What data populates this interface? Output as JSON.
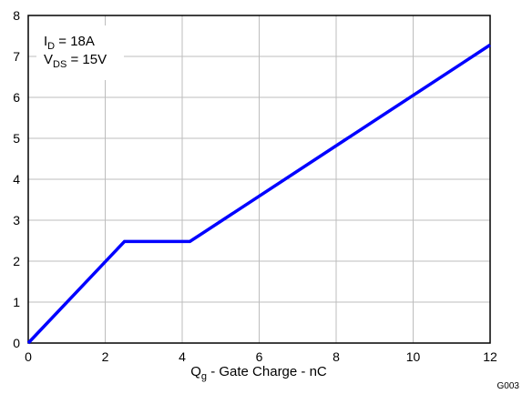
{
  "chart_data": {
    "type": "line",
    "x_ticks": [
      "0",
      "2",
      "4",
      "6",
      "8",
      "10",
      "12"
    ],
    "y_ticks": [
      "0",
      "1",
      "2",
      "3",
      "4",
      "5",
      "6",
      "7",
      "8"
    ],
    "xlim": [
      0,
      12
    ],
    "ylim": [
      0,
      8
    ],
    "grid": true,
    "xlabel": {
      "main": "Q",
      "sub": "g",
      "rest": " - Gate Charge - nC"
    },
    "ylabel": "",
    "annotations": {
      "line1": {
        "main": "I",
        "sub": "D",
        "rest": " = 18A"
      },
      "line2": {
        "main": "V",
        "sub": "DS",
        "rest": " = 15V"
      }
    },
    "figure_id": "G003",
    "series": [
      {
        "color": "#0000ff",
        "x": [
          0,
          2.5,
          4.2,
          12
        ],
        "y": [
          0,
          2.48,
          2.48,
          7.28
        ]
      }
    ]
  }
}
